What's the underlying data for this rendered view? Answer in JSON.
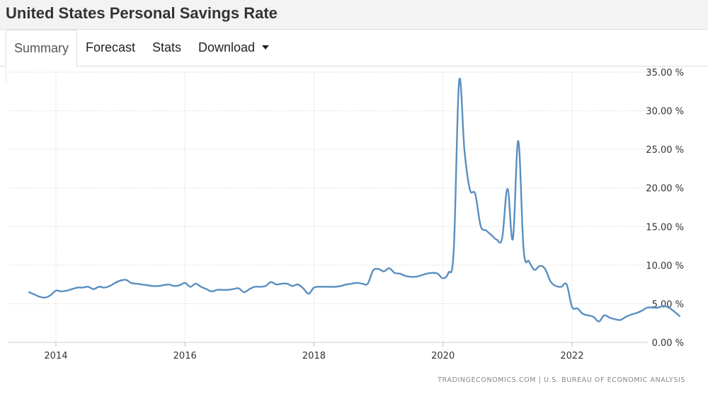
{
  "header": {
    "title": "United States Personal Savings Rate"
  },
  "tabs": [
    {
      "label": "Summary",
      "active": true
    },
    {
      "label": "Forecast",
      "active": false
    },
    {
      "label": "Stats",
      "active": false
    },
    {
      "label": "Download",
      "active": false
    }
  ],
  "source_credit": "TRADINGECONOMICS.COM  |  U.S. BUREAU OF ECONOMIC ANALYSIS",
  "colors": {
    "line": "#5a8fc0",
    "grid": "#cccccc",
    "text": "#333333"
  },
  "chart_data": {
    "type": "line",
    "title": "",
    "xlabel": "",
    "ylabel": "",
    "y_axis_side": "right",
    "ylim": [
      0,
      35
    ],
    "xlim": [
      "2013-08",
      "2023-11"
    ],
    "y_ticks": [
      0,
      5,
      10,
      15,
      20,
      25,
      30,
      35
    ],
    "y_tick_labels": [
      "0.00 %",
      "5.00 %",
      "10.00 %",
      "15.00 %",
      "20.00 %",
      "25.00 %",
      "30.00 %",
      "35.00 %"
    ],
    "x_ticks": [
      "2014-01",
      "2016-01",
      "2018-01",
      "2020-01",
      "2022-01"
    ],
    "x_tick_labels": [
      "2014",
      "2016",
      "2018",
      "2020",
      "2022"
    ],
    "grid": true,
    "series": [
      {
        "points": [
          [
            "2013-08",
            6.5
          ],
          [
            "2013-09",
            6.2
          ],
          [
            "2013-10",
            5.9
          ],
          [
            "2013-11",
            5.8
          ],
          [
            "2013-12",
            6.1
          ],
          [
            "2014-01",
            6.7
          ],
          [
            "2014-02",
            6.6
          ],
          [
            "2014-03",
            6.7
          ],
          [
            "2014-04",
            6.9
          ],
          [
            "2014-05",
            7.1
          ],
          [
            "2014-06",
            7.1
          ],
          [
            "2014-07",
            7.2
          ],
          [
            "2014-08",
            6.9
          ],
          [
            "2014-09",
            7.2
          ],
          [
            "2014-10",
            7.1
          ],
          [
            "2014-11",
            7.3
          ],
          [
            "2014-12",
            7.7
          ],
          [
            "2015-01",
            8.0
          ],
          [
            "2015-02",
            8.1
          ],
          [
            "2015-03",
            7.7
          ],
          [
            "2015-04",
            7.6
          ],
          [
            "2015-05",
            7.5
          ],
          [
            "2015-06",
            7.4
          ],
          [
            "2015-07",
            7.3
          ],
          [
            "2015-08",
            7.3
          ],
          [
            "2015-09",
            7.4
          ],
          [
            "2015-10",
            7.5
          ],
          [
            "2015-11",
            7.3
          ],
          [
            "2015-12",
            7.4
          ],
          [
            "2016-01",
            7.7
          ],
          [
            "2016-02",
            7.2
          ],
          [
            "2016-03",
            7.6
          ],
          [
            "2016-04",
            7.2
          ],
          [
            "2016-05",
            6.9
          ],
          [
            "2016-06",
            6.6
          ],
          [
            "2016-07",
            6.8
          ],
          [
            "2016-08",
            6.8
          ],
          [
            "2016-09",
            6.8
          ],
          [
            "2016-10",
            6.9
          ],
          [
            "2016-11",
            7.0
          ],
          [
            "2016-12",
            6.5
          ],
          [
            "2017-01",
            6.9
          ],
          [
            "2017-02",
            7.2
          ],
          [
            "2017-03",
            7.2
          ],
          [
            "2017-04",
            7.3
          ],
          [
            "2017-05",
            7.8
          ],
          [
            "2017-06",
            7.5
          ],
          [
            "2017-07",
            7.6
          ],
          [
            "2017-08",
            7.6
          ],
          [
            "2017-09",
            7.3
          ],
          [
            "2017-10",
            7.5
          ],
          [
            "2017-11",
            7.0
          ],
          [
            "2017-12",
            6.3
          ],
          [
            "2018-01",
            7.1
          ],
          [
            "2018-02",
            7.2
          ],
          [
            "2018-03",
            7.2
          ],
          [
            "2018-04",
            7.2
          ],
          [
            "2018-05",
            7.2
          ],
          [
            "2018-06",
            7.3
          ],
          [
            "2018-07",
            7.5
          ],
          [
            "2018-08",
            7.6
          ],
          [
            "2018-09",
            7.7
          ],
          [
            "2018-10",
            7.6
          ],
          [
            "2018-11",
            7.6
          ],
          [
            "2018-12",
            9.3
          ],
          [
            "2019-01",
            9.5
          ],
          [
            "2019-02",
            9.2
          ],
          [
            "2019-03",
            9.6
          ],
          [
            "2019-04",
            9.0
          ],
          [
            "2019-05",
            8.9
          ],
          [
            "2019-06",
            8.6
          ],
          [
            "2019-07",
            8.5
          ],
          [
            "2019-08",
            8.5
          ],
          [
            "2019-09",
            8.7
          ],
          [
            "2019-10",
            8.9
          ],
          [
            "2019-11",
            9.0
          ],
          [
            "2019-12",
            8.9
          ],
          [
            "2020-01",
            8.3
          ],
          [
            "2020-02",
            9.0
          ],
          [
            "2020-03",
            12.0
          ],
          [
            "2020-04",
            33.8
          ],
          [
            "2020-05",
            24.8
          ],
          [
            "2020-06",
            19.8
          ],
          [
            "2020-07",
            19.2
          ],
          [
            "2020-08",
            15.1
          ],
          [
            "2020-09",
            14.5
          ],
          [
            "2020-10",
            13.9
          ],
          [
            "2020-11",
            13.3
          ],
          [
            "2020-12",
            13.5
          ],
          [
            "2021-01",
            19.9
          ],
          [
            "2021-02",
            13.4
          ],
          [
            "2021-03",
            26.1
          ],
          [
            "2021-04",
            12.0
          ],
          [
            "2021-05",
            10.5
          ],
          [
            "2021-06",
            9.4
          ],
          [
            "2021-07",
            9.9
          ],
          [
            "2021-08",
            9.5
          ],
          [
            "2021-09",
            7.9
          ],
          [
            "2021-10",
            7.3
          ],
          [
            "2021-11",
            7.2
          ],
          [
            "2021-12",
            7.5
          ],
          [
            "2022-01",
            4.6
          ],
          [
            "2022-02",
            4.4
          ],
          [
            "2022-03",
            3.7
          ],
          [
            "2022-04",
            3.5
          ],
          [
            "2022-05",
            3.3
          ],
          [
            "2022-06",
            2.7
          ],
          [
            "2022-07",
            3.5
          ],
          [
            "2022-08",
            3.2
          ],
          [
            "2022-09",
            3.0
          ],
          [
            "2022-10",
            2.9
          ],
          [
            "2022-11",
            3.3
          ],
          [
            "2022-12",
            3.6
          ],
          [
            "2023-01",
            3.8
          ],
          [
            "2023-02",
            4.1
          ],
          [
            "2023-03",
            4.5
          ],
          [
            "2023-04",
            4.5
          ],
          [
            "2023-05",
            4.5
          ],
          [
            "2023-06",
            4.7
          ],
          [
            "2023-07",
            4.5
          ],
          [
            "2023-08",
            4.0
          ],
          [
            "2023-09",
            3.4
          ]
        ]
      }
    ]
  }
}
